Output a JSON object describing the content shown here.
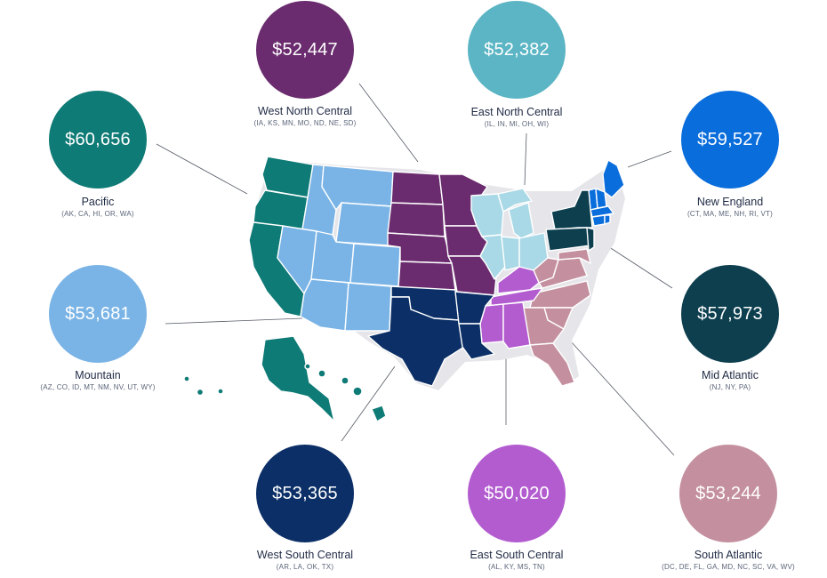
{
  "regions": [
    {
      "id": "pacific",
      "name": "Pacific",
      "states": "(AK, CA, HI, OR, WA)",
      "value": "$60,656",
      "color": "#0f7b76"
    },
    {
      "id": "west-north-central",
      "name": "West North Central",
      "states": "(IA, KS, MN, MO, ND, NE, SD)",
      "value": "$52,447",
      "color": "#6a2c6e"
    },
    {
      "id": "east-north-central",
      "name": "East North Central",
      "states": "(IL, IN, MI, OH, WI)",
      "value": "$52,382",
      "color": "#5bb5c4"
    },
    {
      "id": "new-england",
      "name": "New England",
      "states": "(CT, MA, ME, NH, RI, VT)",
      "value": "$59,527",
      "color": "#0a6ddc"
    },
    {
      "id": "mountain",
      "name": "Mountain",
      "states": "(AZ, CO, ID, MT, NM, NV, UT, WY)",
      "value": "$53,681",
      "color": "#7ab4e6"
    },
    {
      "id": "mid-atlantic",
      "name": "Mid Atlantic",
      "states": "(NJ, NY, PA)",
      "value": "$57,973",
      "color": "#0d3f4f"
    },
    {
      "id": "west-south-central",
      "name": "West South Central",
      "states": "(AR, LA, OK, TX)",
      "value": "$53,365",
      "color": "#0b2f66"
    },
    {
      "id": "east-south-central",
      "name": "East South Central",
      "states": "(AL, KY, MS, TN)",
      "value": "$50,020",
      "color": "#b35cd0"
    },
    {
      "id": "south-atlantic",
      "name": "South Atlantic",
      "states": "(DC, DE, FL, GA, MD, NC, SC, VA, WV)",
      "value": "$53,244",
      "color": "#c4909f"
    }
  ],
  "map_colors": {
    "wnc_light": "#c0a9c9",
    "enc_light": "#a9d9e6",
    "sa_light": "#d5aab6",
    "esc_light": "#c986dc"
  }
}
